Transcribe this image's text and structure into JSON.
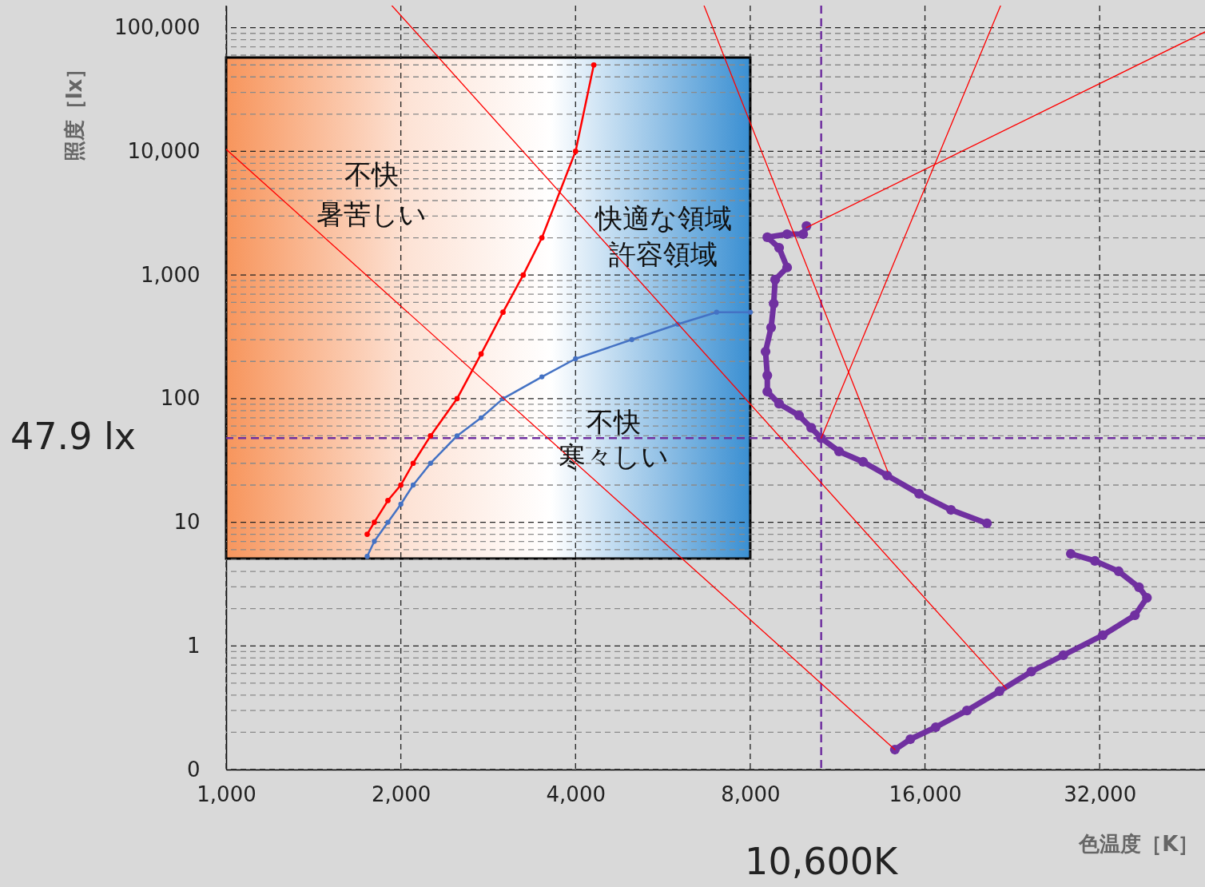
{
  "chart_data": {
    "type": "line",
    "xlabel": "色温度［K］",
    "ylabel": "照度［lx］",
    "log": "xy",
    "grid": true,
    "xlim": [
      1000,
      48600
    ],
    "ylim": [
      0.1,
      151000
    ],
    "xticks": [
      {
        "value": 1000,
        "label": "1,000"
      },
      {
        "value": 2000,
        "label": "2,000"
      },
      {
        "value": 4000,
        "label": "4,000"
      },
      {
        "value": 8000,
        "label": "8,000"
      },
      {
        "value": 16000,
        "label": "16,000"
      },
      {
        "value": 32000,
        "label": "32,000"
      }
    ],
    "yticks": [
      {
        "value": 0.1,
        "label": "0"
      },
      {
        "value": 0.2,
        "label": null
      },
      {
        "value": 0.3,
        "label": null
      },
      {
        "value": 0.4,
        "label": null
      },
      {
        "value": 0.5,
        "label": null
      },
      {
        "value": 0.6,
        "label": null
      },
      {
        "value": 0.7,
        "label": null
      },
      {
        "value": 0.8,
        "label": null
      },
      {
        "value": 0.9,
        "label": null
      },
      1,
      {
        "value": 2,
        "label": null
      },
      {
        "value": 3,
        "label": null
      },
      {
        "value": 4,
        "label": null
      },
      {
        "value": 5,
        "label": null
      },
      {
        "value": 6,
        "label": null
      },
      {
        "value": 7,
        "label": null
      },
      {
        "value": 8,
        "label": null
      },
      {
        "value": 9,
        "label": null
      },
      10,
      {
        "value": 20,
        "label": null
      },
      {
        "value": 30,
        "label": null
      },
      {
        "value": 40,
        "label": null
      },
      {
        "value": 50,
        "label": null
      },
      {
        "value": 60,
        "label": null
      },
      {
        "value": 70,
        "label": null
      },
      {
        "value": 80,
        "label": null
      },
      {
        "value": 90,
        "label": null
      },
      100,
      {
        "value": 200,
        "label": null
      },
      {
        "value": 300,
        "label": null
      },
      {
        "value": 400,
        "label": null
      },
      {
        "value": 500,
        "label": null
      },
      {
        "value": 600,
        "label": null
      },
      {
        "value": 700,
        "label": null
      },
      {
        "value": 800,
        "label": null
      },
      {
        "value": 900,
        "label": null
      },
      {
        "value": 1000,
        "label": "1,000"
      },
      {
        "value": 2000,
        "label": null
      },
      {
        "value": 3000,
        "label": null
      },
      {
        "value": 4000,
        "label": null
      },
      {
        "value": 5000,
        "label": null
      },
      {
        "value": 6000,
        "label": null
      },
      {
        "value": 7000,
        "label": null
      },
      {
        "value": 8000,
        "label": null
      },
      {
        "value": 9000,
        "label": null
      },
      {
        "value": 10000,
        "label": "10,000"
      },
      {
        "value": 20000,
        "label": null
      },
      {
        "value": 30000,
        "label": null
      },
      {
        "value": 40000,
        "label": null
      },
      {
        "value": 50000,
        "label": null
      },
      {
        "value": 60000,
        "label": null
      },
      {
        "value": 70000,
        "label": null
      },
      {
        "value": 80000,
        "label": null
      },
      {
        "value": 90000,
        "label": null
      },
      {
        "value": 100000,
        "label": "100,000"
      }
    ],
    "bands": [
      {
        "axis": "x",
        "from": 1000,
        "to": 8000
      }
    ],
    "ref_lines": [
      {
        "axis": "y",
        "value": 47.9,
        "label": "47.9 lx",
        "color": "#7030a0",
        "line_style": "dashed"
      },
      {
        "axis": "x",
        "value": 10600,
        "label": "10,600K",
        "color": "#7030a0",
        "line_style": "dashed"
      }
    ],
    "annotations": [
      "不快",
      "暑苦しい",
      "快適な領域",
      "許容領域",
      "不快",
      "寒々しい"
    ],
    "series": [
      {
        "color": "#ff0000",
        "marker": "circle",
        "x": [
          1750,
          1800,
          1900,
          2000,
          2100,
          2250,
          2500,
          2750,
          3000,
          3250,
          3500,
          4000,
          4300
        ],
        "values": [
          8,
          10,
          15,
          20,
          30,
          50,
          100,
          230,
          500,
          1000,
          2000,
          10000,
          50000
        ]
      },
      {
        "color": "#4472c4",
        "marker": "circle",
        "x": [
          1750,
          1800,
          1900,
          2000,
          2100,
          2250,
          2500,
          2750,
          3000,
          3500,
          4000,
          5000,
          6000,
          7000,
          8000
        ],
        "values": [
          5.3,
          7,
          10,
          14,
          20,
          30,
          50,
          70,
          100,
          150,
          210,
          300,
          400,
          500,
          500
        ]
      },
      {
        "color": "#7030a0",
        "marker": "circle",
        "x": [
          10000,
          9870,
          9260,
          8560,
          8970,
          9260,
          8830,
          8780,
          8690,
          8500,
          8560,
          8560,
          8970,
          9710,
          10190,
          10600,
          11380,
          12520,
          13770,
          15630,
          17740,
          20460,
          null,
          28540,
          31400,
          34500,
          37400,
          38600,
          36800,
          32400,
          27700,
          24400,
          21500,
          18900,
          16700,
          15100,
          14200
        ],
        "values": [
          2490,
          2140,
          2140,
          2020,
          1660,
          1150,
          918,
          587,
          376,
          240,
          154,
          114,
          91,
          73,
          58,
          47.9,
          37.4,
          30.8,
          23.9,
          17,
          12.6,
          9.8,
          null,
          5.56,
          4.87,
          4.01,
          2.98,
          2.45,
          1.77,
          1.22,
          0.84,
          0.62,
          0.43,
          0.3,
          0.22,
          0.176,
          0.145
        ]
      },
      {
        "color": "#ff0000",
        "marker": "none",
        "x": [
          1000,
          14200
        ],
        "values": [
          10400,
          0.145
        ]
      },
      {
        "color": "#ff0000",
        "marker": "none",
        "x": [
          1930,
          22100
        ],
        "values": [
          151000,
          0.45
        ]
      },
      {
        "color": "#ff0000",
        "marker": "none",
        "x": [
          6660,
          13800
        ],
        "values": [
          151000,
          25.8
        ]
      },
      {
        "color": "#ff0000",
        "marker": "none",
        "x": [
          21600,
          10600
        ],
        "values": [
          151000,
          47.9
        ]
      },
      {
        "color": "#ff0000",
        "marker": "none",
        "x": [
          48600,
          10000
        ],
        "values": [
          92500,
          2420
        ]
      }
    ]
  }
}
